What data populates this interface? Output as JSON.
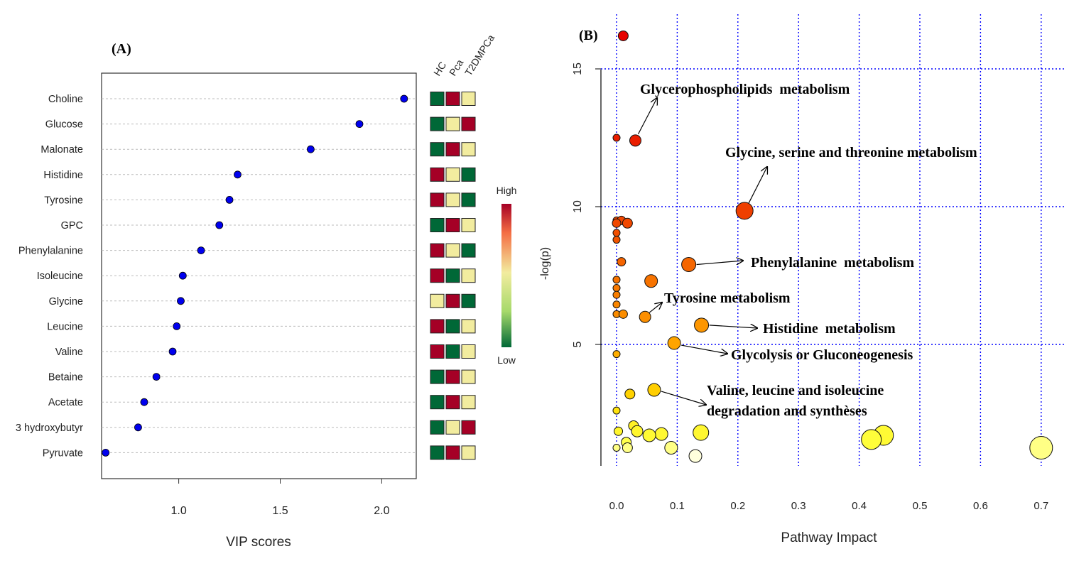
{
  "panel_a_label": "(A)",
  "panel_b_label": "(B)",
  "colors": {
    "point_blue": "#0000ee",
    "heat_high": "#a50026",
    "heat_mid": "#f2ec9f",
    "heat_low": "#006837",
    "grid_blue": "#0000ff"
  },
  "chart_data": [
    {
      "type": "scatter",
      "title": "",
      "xlabel": "VIP scores",
      "ylabel": "",
      "xlim": [
        0.62,
        2.17
      ],
      "xticks": [
        1.0,
        1.5,
        2.0
      ],
      "xtick_labels": [
        "1.0",
        "1.5",
        "2.0"
      ],
      "grid": "horizontal dotted per row",
      "categories": [
        "Choline",
        "Glucose",
        "Malonate",
        "Histidine",
        "Tyrosine",
        "GPC",
        "Phenylalanine",
        "Isoleucine",
        "Glycine",
        "Leucine",
        "Valine",
        "Betaine",
        "Acetate",
        "3 hydroxybutyr",
        "Pyruvate"
      ],
      "values": [
        2.11,
        1.89,
        1.65,
        1.29,
        1.25,
        1.2,
        1.11,
        1.02,
        1.01,
        0.99,
        0.97,
        0.89,
        0.83,
        0.8,
        0.64
      ],
      "heatmap": {
        "columns": [
          "HC",
          "Pca",
          "T2DMPCa"
        ],
        "levels": [
          [
            "low",
            "high",
            "mid"
          ],
          [
            "low",
            "mid",
            "high"
          ],
          [
            "low",
            "high",
            "mid"
          ],
          [
            "high",
            "mid",
            "low"
          ],
          [
            "high",
            "mid",
            "low"
          ],
          [
            "low",
            "high",
            "mid"
          ],
          [
            "high",
            "mid",
            "low"
          ],
          [
            "high",
            "low",
            "mid"
          ],
          [
            "mid",
            "high",
            "low"
          ],
          [
            "high",
            "low",
            "mid"
          ],
          [
            "high",
            "low",
            "mid"
          ],
          [
            "low",
            "high",
            "mid"
          ],
          [
            "low",
            "high",
            "mid"
          ],
          [
            "low",
            "mid",
            "high"
          ],
          [
            "low",
            "high",
            "mid"
          ]
        ],
        "legend_high": "High",
        "legend_low": "Low"
      }
    },
    {
      "type": "scatter",
      "title": "",
      "xlabel": "Pathway Impact",
      "ylabel": "-log(p)",
      "xlim": [
        -0.03,
        0.73
      ],
      "ylim": [
        0.5,
        16.8
      ],
      "xticks": [
        0.0,
        0.1,
        0.2,
        0.3,
        0.4,
        0.5,
        0.6,
        0.7
      ],
      "xtick_labels": [
        "0.0",
        "0.1",
        "0.2",
        "0.3",
        "0.4",
        "0.5",
        "0.6",
        "0.7"
      ],
      "yticks": [
        5,
        10,
        15
      ],
      "ytick_labels": [
        "5",
        "10",
        "15"
      ],
      "grid": "blue dotted",
      "points": [
        {
          "x": 0.011,
          "y": 16.2,
          "size": 7
        },
        {
          "x": 0.0,
          "y": 12.5,
          "size": 5
        },
        {
          "x": 0.031,
          "y": 12.4,
          "size": 8
        },
        {
          "x": 0.211,
          "y": 9.85,
          "size": 12
        },
        {
          "x": 0.0,
          "y": 9.5,
          "size": 5
        },
        {
          "x": 0.008,
          "y": 9.5,
          "size": 6
        },
        {
          "x": 0.0,
          "y": 9.4,
          "size": 6
        },
        {
          "x": 0.018,
          "y": 9.4,
          "size": 7
        },
        {
          "x": 0.0,
          "y": 9.05,
          "size": 5
        },
        {
          "x": 0.0,
          "y": 8.8,
          "size": 5
        },
        {
          "x": 0.008,
          "y": 8.0,
          "size": 6
        },
        {
          "x": 0.119,
          "y": 7.9,
          "size": 10
        },
        {
          "x": 0.0,
          "y": 7.35,
          "size": 5
        },
        {
          "x": 0.057,
          "y": 7.3,
          "size": 9
        },
        {
          "x": 0.0,
          "y": 7.05,
          "size": 5
        },
        {
          "x": 0.0,
          "y": 6.8,
          "size": 5
        },
        {
          "x": 0.0,
          "y": 6.45,
          "size": 5
        },
        {
          "x": 0.0,
          "y": 6.1,
          "size": 5
        },
        {
          "x": 0.011,
          "y": 6.1,
          "size": 6
        },
        {
          "x": 0.047,
          "y": 6.0,
          "size": 8
        },
        {
          "x": 0.14,
          "y": 5.7,
          "size": 10
        },
        {
          "x": 0.095,
          "y": 5.05,
          "size": 9
        },
        {
          "x": 0.0,
          "y": 4.65,
          "size": 5
        },
        {
          "x": 0.062,
          "y": 3.35,
          "size": 9
        },
        {
          "x": 0.022,
          "y": 3.2,
          "size": 7
        },
        {
          "x": 0.0,
          "y": 2.6,
          "size": 5
        },
        {
          "x": 0.028,
          "y": 2.05,
          "size": 7
        },
        {
          "x": 0.034,
          "y": 1.85,
          "size": 8
        },
        {
          "x": 0.003,
          "y": 1.85,
          "size": 6
        },
        {
          "x": 0.074,
          "y": 1.75,
          "size": 9
        },
        {
          "x": 0.139,
          "y": 1.8,
          "size": 11
        },
        {
          "x": 0.054,
          "y": 1.7,
          "size": 9
        },
        {
          "x": 0.44,
          "y": 1.7,
          "size": 14
        },
        {
          "x": 0.42,
          "y": 1.55,
          "size": 14
        },
        {
          "x": 0.016,
          "y": 1.45,
          "size": 7
        },
        {
          "x": 0.0,
          "y": 1.25,
          "size": 5
        },
        {
          "x": 0.018,
          "y": 1.25,
          "size": 7
        },
        {
          "x": 0.09,
          "y": 1.25,
          "size": 9
        },
        {
          "x": 0.7,
          "y": 1.25,
          "size": 16
        },
        {
          "x": 0.13,
          "y": 0.95,
          "size": 9
        }
      ],
      "annotations": [
        {
          "text": "Glycerophospholipids  metabolism",
          "from": [
            0.031,
            12.4
          ]
        },
        {
          "text": "Glycine, serine and threonine metabolism",
          "from": [
            0.211,
            9.85
          ]
        },
        {
          "text": "Phenylalanine  metabolism",
          "from": [
            0.119,
            7.9
          ]
        },
        {
          "text": "Tyrosine metabolism",
          "from": [
            0.047,
            6.0
          ]
        },
        {
          "text": "Histidine  metabolism",
          "from": [
            0.14,
            5.7
          ]
        },
        {
          "text": "Glycolysis or Gluconeogenesis",
          "from": [
            0.095,
            5.05
          ]
        },
        {
          "text": "Valine, leucine and isoleucine",
          "from": [
            0.062,
            3.35
          ]
        },
        {
          "text": "degradation and synthèses",
          "from": null
        }
      ]
    }
  ]
}
